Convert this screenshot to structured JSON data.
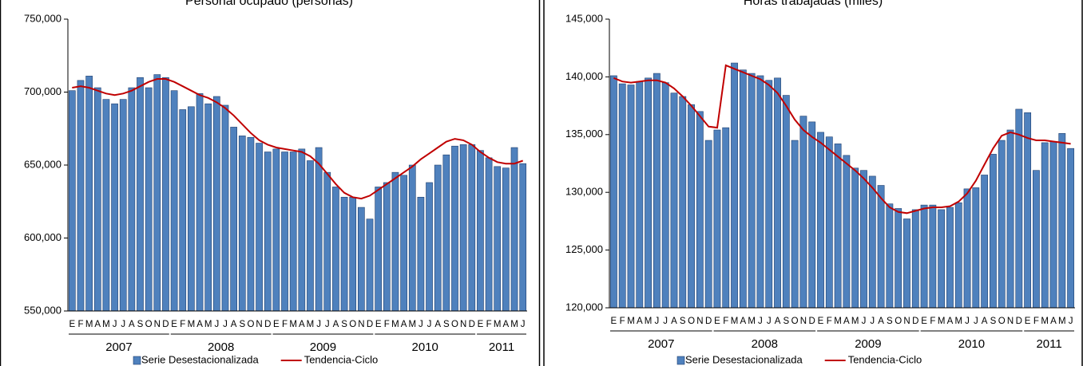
{
  "chart_data": [
    {
      "type": "bar",
      "title": "Personal ocupado (personas)",
      "categories": [
        "E",
        "F",
        "M",
        "A",
        "M",
        "J",
        "J",
        "A",
        "S",
        "O",
        "N",
        "D",
        "E",
        "F",
        "M",
        "A",
        "M",
        "J",
        "J",
        "A",
        "S",
        "O",
        "N",
        "D",
        "E",
        "F",
        "M",
        "A",
        "M",
        "J",
        "J",
        "A",
        "S",
        "O",
        "N",
        "D",
        "E",
        "F",
        "M",
        "A",
        "M",
        "J",
        "J",
        "A",
        "S",
        "O",
        "N",
        "D",
        "E",
        "F",
        "M",
        "A",
        "M",
        "J"
      ],
      "years": [
        "2007",
        "2008",
        "2009",
        "2010",
        "2011"
      ],
      "series": [
        {
          "name": "Serie Desestacionalizada",
          "type": "bar",
          "color": "#4f81bd",
          "values": [
            701000,
            708000,
            711000,
            703000,
            695000,
            692000,
            695000,
            703000,
            710000,
            703000,
            712000,
            710000,
            701000,
            688000,
            690000,
            699000,
            692000,
            697000,
            691000,
            676000,
            670000,
            669000,
            665000,
            659000,
            661000,
            659000,
            659000,
            661000,
            653000,
            662000,
            645000,
            635000,
            628000,
            628000,
            621000,
            613000,
            635000,
            638000,
            645000,
            643000,
            650000,
            628000,
            638000,
            650000,
            657000,
            663000,
            664000,
            664000,
            660000,
            655000,
            649000,
            648000,
            662000,
            651000
          ]
        },
        {
          "name": "Tendencia-Ciclo",
          "type": "line",
          "color": "#c00000",
          "values": [
            703000,
            704000,
            703000,
            701000,
            699000,
            698000,
            699000,
            701000,
            704000,
            707000,
            709000,
            709000,
            707000,
            704000,
            701000,
            698000,
            696000,
            693000,
            689000,
            684000,
            678000,
            672000,
            667000,
            664000,
            662000,
            661000,
            660000,
            659000,
            656000,
            651000,
            644000,
            637000,
            631000,
            628000,
            627000,
            629000,
            633000,
            637000,
            641000,
            645000,
            649000,
            654000,
            658000,
            662000,
            666000,
            668000,
            667000,
            664000,
            659000,
            655000,
            652000,
            651000,
            651000,
            653000
          ]
        }
      ],
      "ylim": [
        550000,
        750000
      ],
      "yticks": [
        {
          "value": 550000,
          "label": "550,000"
        },
        {
          "value": 600000,
          "label": "600,000"
        },
        {
          "value": 650000,
          "label": "650,000"
        },
        {
          "value": 700000,
          "label": "700,000"
        },
        {
          "value": 750000,
          "label": "750,000"
        }
      ],
      "grid": false,
      "legend": "bottom"
    },
    {
      "type": "bar",
      "title": "Horas trabajadas (miles)",
      "categories": [
        "E",
        "F",
        "M",
        "A",
        "M",
        "J",
        "J",
        "A",
        "S",
        "O",
        "N",
        "D",
        "E",
        "F",
        "M",
        "A",
        "M",
        "J",
        "J",
        "A",
        "S",
        "O",
        "N",
        "D",
        "E",
        "F",
        "M",
        "A",
        "M",
        "J",
        "J",
        "A",
        "S",
        "O",
        "N",
        "D",
        "E",
        "F",
        "M",
        "A",
        "M",
        "J",
        "J",
        "A",
        "S",
        "O",
        "N",
        "D",
        "E",
        "F",
        "M",
        "A",
        "M",
        "J"
      ],
      "years": [
        "2007",
        "2008",
        "2009",
        "2010",
        "2011"
      ],
      "series": [
        {
          "name": "Serie Desestacionalizada",
          "type": "bar",
          "color": "#4f81bd",
          "values": [
            140100,
            139400,
            139300,
            139600,
            139900,
            140300,
            139500,
            138600,
            138300,
            137600,
            137000,
            134500,
            135400,
            135600,
            141200,
            140600,
            140300,
            140100,
            139700,
            139900,
            138400,
            134500,
            136600,
            136100,
            135200,
            134800,
            134200,
            133200,
            132100,
            131900,
            131400,
            130600,
            129000,
            128600,
            127700,
            128500,
            128900,
            128900,
            128500,
            128700,
            129100,
            130300,
            130400,
            131500,
            133300,
            134500,
            135400,
            137200,
            136900,
            131900,
            134300,
            134400,
            135100,
            133800
          ]
        },
        {
          "name": "Tendencia-Ciclo",
          "type": "line",
          "color": "#c00000",
          "values": [
            139900,
            139600,
            139500,
            139600,
            139700,
            139700,
            139500,
            139000,
            138300,
            137500,
            136600,
            135700,
            135600,
            141000,
            140700,
            140400,
            140100,
            139800,
            139300,
            138600,
            137500,
            136300,
            135400,
            134800,
            134300,
            133700,
            133100,
            132500,
            131900,
            131200,
            130400,
            129500,
            128700,
            128300,
            128200,
            128400,
            128600,
            128700,
            128700,
            128800,
            129200,
            129900,
            131000,
            132400,
            133800,
            134900,
            135200,
            135000,
            134700,
            134500,
            134500,
            134400,
            134300,
            134200
          ]
        }
      ],
      "ylim": [
        120000,
        145000
      ],
      "yticks": [
        {
          "value": 120000,
          "label": "120,000"
        },
        {
          "value": 125000,
          "label": "125,000"
        },
        {
          "value": 130000,
          "label": "130,000"
        },
        {
          "value": 135000,
          "label": "135,000"
        },
        {
          "value": 140000,
          "label": "140,000"
        },
        {
          "value": 145000,
          "label": "145,000"
        }
      ],
      "grid": false,
      "legend": "bottom"
    }
  ]
}
